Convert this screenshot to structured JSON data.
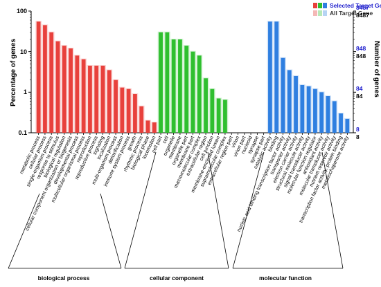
{
  "chart_data": {
    "type": "bar",
    "title": "",
    "ylabel_left": "Percentage of genes",
    "ylabel_right": "Number of genes",
    "yscale": "log",
    "ylim": [
      0.1,
      100
    ],
    "left_ticks": [
      "100",
      "10",
      "1",
      "0.1"
    ],
    "right_ticks_selected": [
      "8487",
      "848",
      "84",
      "8"
    ],
    "right_ticks_all": [
      "8487",
      "848",
      "84",
      "8"
    ],
    "legend": {
      "selected": "Selected Target Gene",
      "all": "All Target Gene",
      "placement": "top-right"
    },
    "colors": {
      "biological process": "#e8413c",
      "cellular component": "#2fbf2f",
      "molecular function": "#2f7fe0",
      "right_axis_selected": "#1a1acc"
    },
    "groups": [
      {
        "name": "biological process",
        "categories": [
          "metabolic process",
          "cellular process",
          "single-organism process",
          "response to stimulus",
          "biological regulation",
          "cellular component organization or biogenesis",
          "developmental process",
          "multicellular organismal process",
          "reproduction",
          "reproductive process",
          "signaling",
          "localization",
          "multi-organism process",
          "detoxification",
          "immune system process",
          "growth",
          "rhythmic process",
          "biological phase",
          "locomotion"
        ],
        "values": [
          55,
          45,
          30,
          18,
          14,
          12,
          8,
          6.5,
          4.5,
          4.5,
          4.5,
          3.5,
          2,
          1.3,
          1.2,
          0.9,
          0.45,
          0.2,
          0.18
        ]
      },
      {
        "name": "cellular component",
        "categories": [
          "cell part",
          "cell",
          "organelle",
          "membrane",
          "organelle part",
          "membrane part",
          "macromolecular complex",
          "extracellular region",
          "cell junction",
          "membrane-enclosed lumen",
          "supramolecular complex",
          "extracellular region part",
          "virion",
          "virion part",
          "nucleoid",
          "synapse",
          "synapse part"
        ],
        "values": [
          30,
          30,
          20,
          20,
          14,
          10,
          8,
          2.2,
          1.2,
          0.7,
          0.65,
          0,
          0,
          0,
          0,
          0,
          0
        ]
      },
      {
        "name": "molecular function",
        "categories": [
          "catalytic activity",
          "binding",
          "nucleic acid binding transcription factor activity",
          "transporter activity",
          "electron carrier activity",
          "structural molecule activity",
          "signal transducer activity",
          "molecular function regulator",
          "antioxidant activity",
          "molecular transducer activity",
          "nutrient reservoir activity",
          "transcription factor activity, protein binding",
          "metallochaperone activity"
        ],
        "values": [
          55,
          55,
          7,
          3.5,
          2.5,
          1.5,
          1.4,
          1.2,
          1,
          0.8,
          0.6,
          0.3,
          0.22
        ]
      }
    ]
  }
}
